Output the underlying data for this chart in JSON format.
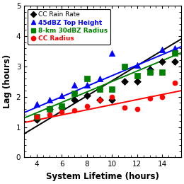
{
  "title": "",
  "xlabel": "System Lifetime (hours)",
  "ylabel": "Lag (hours)",
  "xlim": [
    3.0,
    15.5
  ],
  "ylim": [
    0,
    5
  ],
  "xticks": [
    4,
    6,
    8,
    10,
    12,
    14
  ],
  "yticks": [
    0,
    1,
    2,
    3,
    4,
    5
  ],
  "series": [
    {
      "label": "CC Rain Rate",
      "color": "#000000",
      "marker": "D",
      "markersize": 5,
      "x": [
        4.0,
        5.0,
        6.0,
        7.0,
        8.0,
        9.0,
        10.0,
        11.0,
        12.0,
        13.0,
        14.0,
        15.0
      ],
      "y": [
        1.25,
        1.6,
        1.65,
        1.9,
        2.05,
        1.9,
        1.9,
        2.5,
        2.5,
        2.9,
        3.15,
        3.15
      ],
      "trend_x": [
        3.0,
        15.5
      ],
      "trend_y": [
        0.78,
        3.9
      ]
    },
    {
      "label": "45dBZ Top Height",
      "color": "#0000FF",
      "marker": "^",
      "markersize": 6,
      "x": [
        4.0,
        5.0,
        6.0,
        7.0,
        8.0,
        9.0,
        10.0,
        11.0,
        12.0,
        13.0,
        14.0,
        15.0
      ],
      "y": [
        1.75,
        1.9,
        2.05,
        2.4,
        2.4,
        2.6,
        3.45,
        3.0,
        3.05,
        2.85,
        3.55,
        3.6
      ],
      "trend_x": [
        3.0,
        15.5
      ],
      "trend_y": [
        1.48,
        3.65
      ]
    },
    {
      "label": "8-km 30dBZ Radius",
      "color": "#008000",
      "marker": "s",
      "markersize": 6,
      "x": [
        4.0,
        5.0,
        6.0,
        7.0,
        8.0,
        9.0,
        10.0,
        11.0,
        12.0,
        13.0,
        14.0,
        15.0
      ],
      "y": [
        1.35,
        1.6,
        1.7,
        2.1,
        2.6,
        2.25,
        2.25,
        3.0,
        2.7,
        2.8,
        2.8,
        3.45
      ],
      "trend_x": [
        3.0,
        15.5
      ],
      "trend_y": [
        1.3,
        3.45
      ]
    },
    {
      "label": "CC Radius",
      "color": "#FF0000",
      "marker": "o",
      "markersize": 5,
      "x": [
        4.0,
        5.0,
        6.0,
        7.0,
        8.0,
        9.0,
        10.0,
        11.0,
        12.0,
        13.0,
        14.0,
        15.0
      ],
      "y": [
        1.35,
        1.4,
        1.5,
        1.55,
        1.7,
        1.9,
        2.0,
        1.65,
        1.6,
        1.95,
        2.0,
        2.45
      ],
      "trend_x": [
        3.0,
        15.5
      ],
      "trend_y": [
        1.15,
        2.2
      ]
    }
  ],
  "legend_fontsize": 6.5,
  "axis_fontsize": 8.5,
  "tick_fontsize": 7.5,
  "background_color": "#ffffff",
  "linewidth": 1.4,
  "legend_text_bold": [
    false,
    true,
    true,
    true
  ]
}
